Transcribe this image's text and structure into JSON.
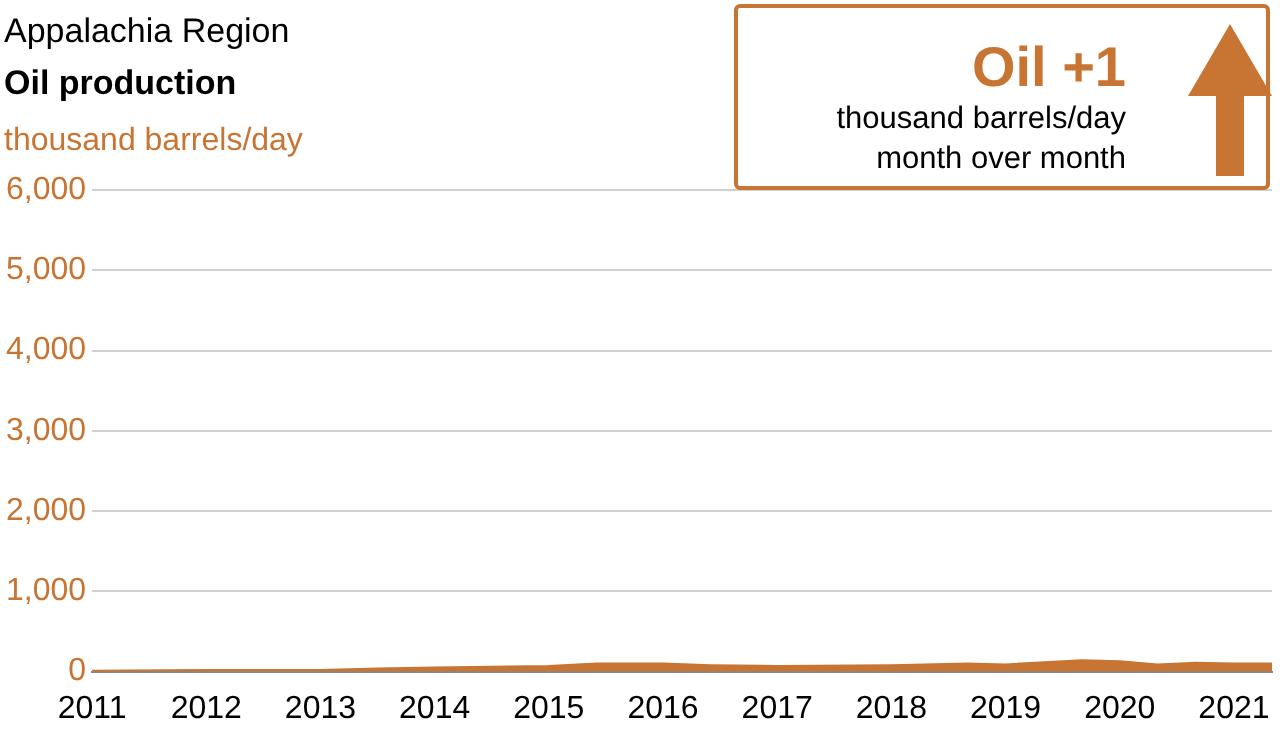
{
  "chart_data": {
    "type": "area",
    "title": "Appalachia Region",
    "subtitle": "Oil production",
    "ylabel": "thousand barrels/day",
    "annotations": [
      "Oil +1",
      "thousand barrels/day",
      "month over month"
    ],
    "x": [
      "2011-01",
      "2012-01",
      "2013-01",
      "2013-07",
      "2014-01",
      "2015-01",
      "2015-06",
      "2016-01",
      "2016-06",
      "2017-01",
      "2018-01",
      "2018-09",
      "2019-01",
      "2019-09",
      "2020-01",
      "2020-05",
      "2020-09",
      "2021-01",
      "2021-05"
    ],
    "series": [
      {
        "color": "#c87533",
        "values": [
          10,
          20,
          20,
          40,
          50,
          70,
          100,
          100,
          80,
          70,
          80,
          100,
          90,
          140,
          130,
          90,
          110,
          100,
          100
        ]
      }
    ],
    "xlim": [
      "2011-01",
      "2021-05"
    ],
    "xticks": [
      "2011",
      "2012",
      "2013",
      "2014",
      "2015",
      "2016",
      "2017",
      "2018",
      "2019",
      "2020",
      "2021"
    ],
    "ylim": [
      0,
      6000
    ],
    "yticks": [
      0,
      {
        "value": 1000,
        "label": "1,000"
      },
      {
        "value": 2000,
        "label": "2,000"
      },
      {
        "value": 3000,
        "label": "3,000"
      },
      {
        "value": 4000,
        "label": "4,000"
      },
      {
        "value": 5000,
        "label": "5,000"
      },
      {
        "value": 6000,
        "label": "6,000"
      }
    ],
    "grid": "y",
    "legend": false
  }
}
